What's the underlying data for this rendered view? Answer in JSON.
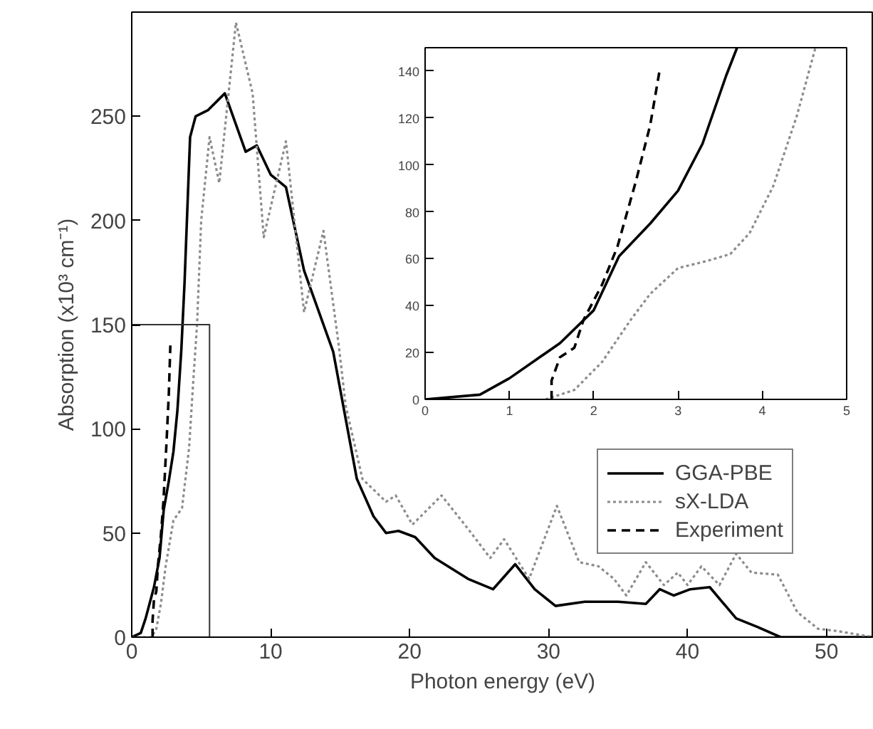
{
  "chart_data": [
    {
      "type": "line",
      "xlabel": "Photon energy (eV)",
      "ylabel": "Absorption (x10³ cm⁻¹)",
      "xlim": [
        0,
        53.4
      ],
      "xticks": [
        0,
        10,
        20,
        30,
        40,
        50
      ],
      "ylim": [
        0,
        300
      ],
      "yticks": [
        0,
        50,
        100,
        150,
        200,
        250
      ],
      "legend": "bottom right",
      "grid": false,
      "series": [
        {
          "name": "GGA-PBE",
          "color": "#000000",
          "line_style": "solid",
          "x": [
            0,
            0.65,
            1,
            1.6,
            2,
            2.3,
            2.67,
            3,
            3.29,
            3.57,
            3.8,
            4.2,
            4.6,
            5.5,
            6.7,
            8.2,
            9.0,
            10.0,
            11.1,
            12.4,
            14.5,
            16.2,
            17.4,
            18.3,
            19.2,
            20.4,
            21.8,
            24.2,
            26,
            27.6,
            29,
            30.5,
            32.6,
            35,
            37,
            38,
            39,
            40.2,
            41.6,
            43.5,
            45,
            46.7,
            53.4
          ],
          "values": [
            0,
            2,
            9,
            24,
            38,
            61,
            75,
            89,
            109,
            138,
            170,
            240,
            250,
            253,
            261,
            233,
            236,
            222,
            216,
            176,
            137,
            76,
            58,
            50,
            51,
            48,
            38,
            28,
            23,
            35,
            23,
            15,
            17,
            17,
            16,
            23,
            20,
            23,
            24,
            9,
            5,
            0,
            0
          ]
        },
        {
          "name": "sX-LDA",
          "color": "#8c8c8c",
          "line_style": "dotted",
          "x": [
            0,
            1.43,
            1.77,
            2.1,
            2.44,
            3.0,
            3.62,
            4.13,
            4.41,
            4.7,
            5.0,
            5.6,
            6.3,
            7.5,
            8.7,
            9.5,
            11.1,
            12.4,
            13.8,
            14.9,
            15.4,
            16.6,
            18.3,
            19,
            20.2,
            22.3,
            24.2,
            25.8,
            26.8,
            28.6,
            30.6,
            32.2,
            33.6,
            34.7,
            35.6,
            37,
            38.3,
            39.3,
            40,
            41,
            42.3,
            43.5,
            44.6,
            46.5,
            47.9,
            49.4,
            50.7,
            53.4
          ],
          "values": [
            0,
            0,
            4,
            16,
            34,
            56,
            62,
            91,
            121,
            150,
            200,
            240,
            218,
            295,
            261,
            192,
            238,
            156,
            195,
            140,
            111,
            76,
            65,
            68,
            54,
            68,
            52,
            38,
            47,
            28,
            63,
            36,
            34,
            28,
            20,
            36,
            25,
            31,
            25,
            34,
            25,
            40,
            31,
            30,
            12,
            4,
            3,
            0
          ]
        },
        {
          "name": "Experiment",
          "color": "#000000",
          "line_style": "dashed",
          "x": [
            1.5,
            1.5,
            1.6,
            1.77,
            1.88,
            2.1,
            2.28,
            2.5,
            2.67,
            2.78
          ],
          "values": [
            0,
            8,
            18,
            22,
            34,
            49,
            65,
            93,
            117,
            140
          ]
        },
        {
          "color": "#333333",
          "line_style": "solid",
          "x": [
            0,
            5.6,
            5.6
          ],
          "values": [
            150,
            150,
            0
          ]
        }
      ]
    },
    {
      "type": "line",
      "xlim": [
        0,
        5
      ],
      "xticks": [
        0,
        1,
        2,
        3,
        4,
        5
      ],
      "ylim": [
        0,
        150
      ],
      "yticks": [
        0,
        20,
        40,
        60,
        80,
        100,
        120,
        140
      ],
      "grid": false,
      "series": [
        {
          "color": "#000000",
          "line_style": "solid",
          "x": [
            0,
            0.65,
            1.0,
            1.6,
            2.0,
            2.3,
            2.67,
            3.0,
            3.29,
            3.57,
            3.7
          ],
          "values": [
            0,
            2,
            9,
            24,
            38,
            61,
            75,
            89,
            109,
            138,
            150
          ]
        },
        {
          "color": "#8c8c8c",
          "line_style": "dotted",
          "x": [
            1.43,
            1.77,
            2.1,
            2.44,
            2.67,
            3.0,
            3.34,
            3.62,
            3.85,
            4.13,
            4.41,
            4.63
          ],
          "values": [
            0,
            4,
            16,
            34,
            45,
            56,
            59,
            62,
            71,
            91,
            121,
            150
          ]
        },
        {
          "color": "#000000",
          "line_style": "dashed",
          "x": [
            1.5,
            1.5,
            1.6,
            1.77,
            1.88,
            2.1,
            2.28,
            2.5,
            2.67,
            2.78
          ],
          "values": [
            0,
            8,
            18,
            22,
            34,
            49,
            65,
            93,
            117,
            140
          ]
        }
      ]
    }
  ]
}
